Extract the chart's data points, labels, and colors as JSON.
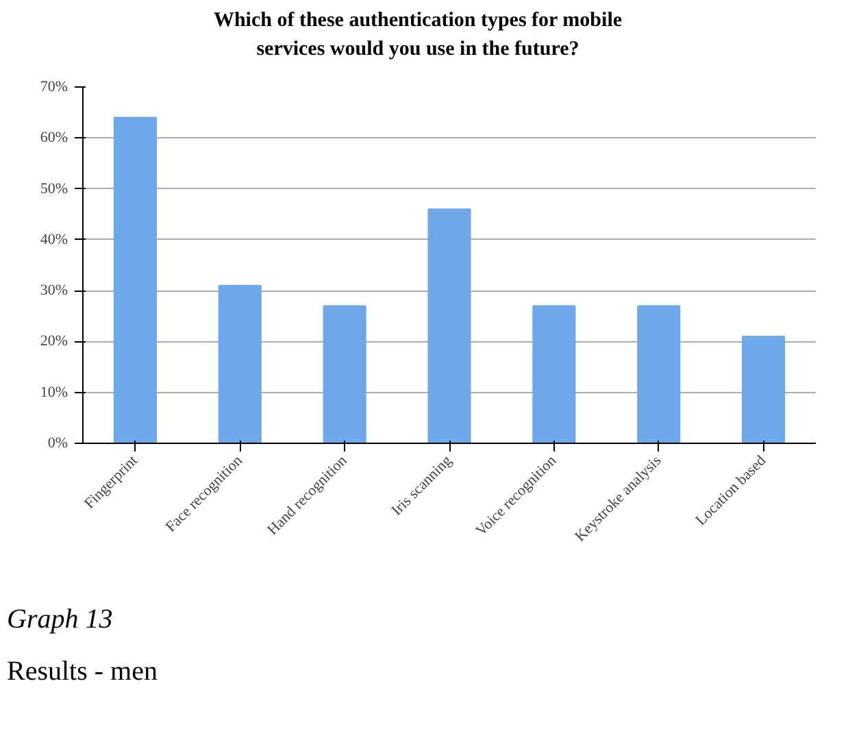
{
  "chart_data": {
    "type": "bar",
    "title": "Which of these authentication types for mobile\nservices would you use in the future?",
    "categories": [
      "Fingerprint",
      "Face recognition",
      "Hand recognition",
      "Iris scanning",
      "Voice recognition",
      "Keystroke analysis",
      "Location based"
    ],
    "values": [
      64,
      31,
      27,
      46,
      27,
      27,
      21
    ],
    "color": "#6fa8e8",
    "ylim": [
      0,
      70
    ],
    "yticks": [
      {
        "value": 0,
        "label": "0%"
      },
      {
        "value": 10,
        "label": "10%"
      },
      {
        "value": 20,
        "label": "20%"
      },
      {
        "value": 30,
        "label": "30%"
      },
      {
        "value": 40,
        "label": "40%"
      },
      {
        "value": 50,
        "label": "50%"
      },
      {
        "value": 60,
        "label": "60%"
      },
      {
        "value": 70,
        "label": "70%"
      }
    ],
    "grid": "y",
    "annotations": [
      "Graph 13",
      "Results - men"
    ]
  }
}
